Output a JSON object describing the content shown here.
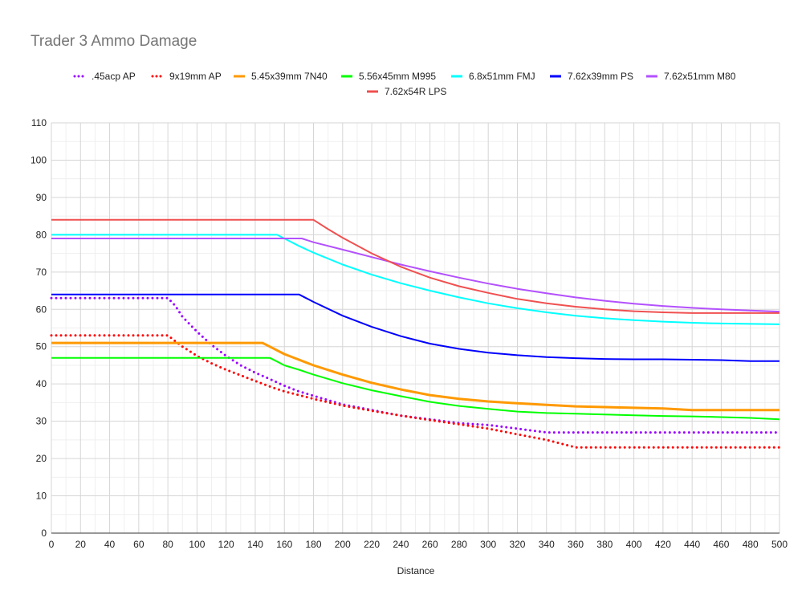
{
  "chart_data": {
    "type": "line",
    "title": "Trader 3 Ammo Damage",
    "xlabel": "Distance",
    "ylabel": "",
    "xlim": [
      0,
      500
    ],
    "ylim": [
      0,
      110
    ],
    "x_ticks": [
      0,
      20,
      40,
      60,
      80,
      100,
      120,
      140,
      160,
      180,
      200,
      220,
      240,
      260,
      280,
      300,
      320,
      340,
      360,
      380,
      400,
      420,
      440,
      460,
      480,
      500
    ],
    "y_ticks": [
      0,
      10,
      20,
      30,
      40,
      50,
      60,
      70,
      80,
      90,
      100,
      110
    ],
    "grid": true,
    "legend_position": "top",
    "series": [
      {
        "name": ".45acp AP",
        "color": "#9900ff",
        "style": "dotted",
        "points": [
          [
            0,
            63
          ],
          [
            80,
            63
          ],
          [
            85,
            61
          ],
          [
            90,
            58
          ],
          [
            100,
            54
          ],
          [
            110,
            50.5
          ],
          [
            120,
            47.5
          ],
          [
            130,
            45
          ],
          [
            140,
            43
          ],
          [
            150,
            41.3
          ],
          [
            160,
            39.5
          ],
          [
            170,
            38
          ],
          [
            180,
            36.8
          ],
          [
            200,
            34.5
          ],
          [
            220,
            33
          ],
          [
            240,
            31.5
          ],
          [
            260,
            30.5
          ],
          [
            280,
            29.5
          ],
          [
            300,
            29
          ],
          [
            320,
            28
          ],
          [
            340,
            27
          ],
          [
            360,
            27
          ],
          [
            380,
            27
          ],
          [
            400,
            27
          ],
          [
            420,
            27
          ],
          [
            440,
            27
          ],
          [
            460,
            27
          ],
          [
            480,
            27
          ],
          [
            500,
            27
          ]
        ]
      },
      {
        "name": "9x19mm AP",
        "color": "#ff0000",
        "style": "dotted",
        "points": [
          [
            0,
            53
          ],
          [
            80,
            53
          ],
          [
            85,
            51.5
          ],
          [
            90,
            50
          ],
          [
            100,
            47.5
          ],
          [
            110,
            45.5
          ],
          [
            120,
            43.8
          ],
          [
            130,
            42.3
          ],
          [
            140,
            40.8
          ],
          [
            150,
            39.3
          ],
          [
            160,
            38
          ],
          [
            170,
            37
          ],
          [
            180,
            36
          ],
          [
            200,
            34.2
          ],
          [
            220,
            32.8
          ],
          [
            240,
            31.5
          ],
          [
            260,
            30.3
          ],
          [
            280,
            29.2
          ],
          [
            300,
            28
          ],
          [
            320,
            26.5
          ],
          [
            340,
            25
          ],
          [
            360,
            23
          ],
          [
            380,
            23
          ],
          [
            400,
            23
          ],
          [
            420,
            23
          ],
          [
            440,
            23
          ],
          [
            460,
            23
          ],
          [
            480,
            23
          ],
          [
            500,
            23
          ]
        ]
      },
      {
        "name": "5.45x39mm 7N40",
        "color": "#ff9900",
        "style": "solid",
        "points": [
          [
            0,
            51
          ],
          [
            145,
            51
          ],
          [
            150,
            50
          ],
          [
            160,
            48
          ],
          [
            170,
            46.5
          ],
          [
            180,
            45
          ],
          [
            200,
            42.5
          ],
          [
            220,
            40.3
          ],
          [
            240,
            38.5
          ],
          [
            260,
            37
          ],
          [
            280,
            36
          ],
          [
            300,
            35.3
          ],
          [
            320,
            34.8
          ],
          [
            340,
            34.4
          ],
          [
            360,
            34
          ],
          [
            380,
            33.8
          ],
          [
            400,
            33.6
          ],
          [
            420,
            33.4
          ],
          [
            440,
            33
          ],
          [
            460,
            33
          ],
          [
            480,
            33
          ],
          [
            500,
            33
          ]
        ]
      },
      {
        "name": "5.56x45mm M995",
        "color": "#00ff00",
        "style": "solid",
        "points": [
          [
            0,
            47
          ],
          [
            150,
            47
          ],
          [
            155,
            46
          ],
          [
            160,
            45
          ],
          [
            170,
            43.8
          ],
          [
            180,
            42.5
          ],
          [
            200,
            40.2
          ],
          [
            220,
            38.3
          ],
          [
            240,
            36.7
          ],
          [
            260,
            35.2
          ],
          [
            280,
            34.1
          ],
          [
            300,
            33.3
          ],
          [
            320,
            32.6
          ],
          [
            340,
            32.2
          ],
          [
            360,
            32
          ],
          [
            380,
            31.8
          ],
          [
            400,
            31.6
          ],
          [
            420,
            31.4
          ],
          [
            440,
            31.3
          ],
          [
            460,
            31.1
          ],
          [
            480,
            30.9
          ],
          [
            500,
            30.5
          ]
        ]
      },
      {
        "name": "6.8x51mm FMJ",
        "color": "#00ffff",
        "style": "solid",
        "points": [
          [
            0,
            80
          ],
          [
            155,
            80
          ],
          [
            160,
            79
          ],
          [
            170,
            77
          ],
          [
            180,
            75.2
          ],
          [
            200,
            72
          ],
          [
            220,
            69.3
          ],
          [
            240,
            67
          ],
          [
            260,
            65
          ],
          [
            280,
            63.2
          ],
          [
            300,
            61.6
          ],
          [
            320,
            60.3
          ],
          [
            340,
            59.2
          ],
          [
            360,
            58.3
          ],
          [
            380,
            57.6
          ],
          [
            400,
            57.1
          ],
          [
            420,
            56.7
          ],
          [
            440,
            56.4
          ],
          [
            460,
            56.2
          ],
          [
            480,
            56.1
          ],
          [
            500,
            56
          ]
        ]
      },
      {
        "name": "7.62x39mm PS",
        "color": "#0000ff",
        "style": "solid",
        "points": [
          [
            0,
            64
          ],
          [
            170,
            64
          ],
          [
            175,
            63
          ],
          [
            180,
            62
          ],
          [
            200,
            58.3
          ],
          [
            220,
            55.3
          ],
          [
            240,
            52.8
          ],
          [
            260,
            50.8
          ],
          [
            280,
            49.4
          ],
          [
            300,
            48.4
          ],
          [
            320,
            47.7
          ],
          [
            340,
            47.2
          ],
          [
            360,
            46.9
          ],
          [
            380,
            46.7
          ],
          [
            400,
            46.6
          ],
          [
            420,
            46.6
          ],
          [
            440,
            46.5
          ],
          [
            460,
            46.4
          ],
          [
            480,
            46.1
          ],
          [
            500,
            46.1
          ]
        ]
      },
      {
        "name": "7.62x51mm M80",
        "color": "#b350ff",
        "style": "solid",
        "points": [
          [
            0,
            79
          ],
          [
            172,
            79
          ],
          [
            180,
            78
          ],
          [
            200,
            76
          ],
          [
            220,
            74
          ],
          [
            240,
            72
          ],
          [
            260,
            70.2
          ],
          [
            280,
            68.5
          ],
          [
            300,
            66.9
          ],
          [
            320,
            65.5
          ],
          [
            340,
            64.3
          ],
          [
            360,
            63.2
          ],
          [
            380,
            62.3
          ],
          [
            400,
            61.5
          ],
          [
            420,
            60.9
          ],
          [
            440,
            60.4
          ],
          [
            460,
            60
          ],
          [
            480,
            59.7
          ],
          [
            500,
            59.4
          ]
        ]
      },
      {
        "name": "7.62x54R LPS",
        "color": "#f05050",
        "style": "solid",
        "points": [
          [
            0,
            84
          ],
          [
            180,
            84
          ],
          [
            190,
            81.5
          ],
          [
            200,
            79.2
          ],
          [
            220,
            75
          ],
          [
            240,
            71.4
          ],
          [
            260,
            68.5
          ],
          [
            280,
            66.2
          ],
          [
            300,
            64.4
          ],
          [
            320,
            62.8
          ],
          [
            340,
            61.6
          ],
          [
            360,
            60.7
          ],
          [
            380,
            60
          ],
          [
            400,
            59.5
          ],
          [
            420,
            59.2
          ],
          [
            440,
            59
          ],
          [
            460,
            59
          ],
          [
            480,
            59
          ],
          [
            500,
            59
          ]
        ]
      }
    ]
  }
}
